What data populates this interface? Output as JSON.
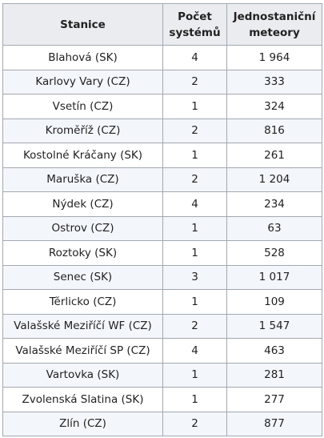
{
  "headers": {
    "station": "Stanice",
    "systems": "Počet systémů",
    "meteors": "Jednostaniční meteory"
  },
  "rows": [
    {
      "station": "Blahová (SK)",
      "systems": "4",
      "meteors": "1 964"
    },
    {
      "station": "Karlovy Vary (CZ)",
      "systems": "2",
      "meteors": "333"
    },
    {
      "station": "Vsetín (CZ)",
      "systems": "1",
      "meteors": "324"
    },
    {
      "station": "Kroměříž (CZ)",
      "systems": "2",
      "meteors": "816"
    },
    {
      "station": "Kostolné Kráčany (SK)",
      "systems": "1",
      "meteors": "261"
    },
    {
      "station": "Maruška (CZ)",
      "systems": "2",
      "meteors": "1 204"
    },
    {
      "station": "Nýdek (CZ)",
      "systems": "4",
      "meteors": "234"
    },
    {
      "station": "Ostrov (CZ)",
      "systems": "1",
      "meteors": "63"
    },
    {
      "station": "Roztoky (SK)",
      "systems": "1",
      "meteors": "528"
    },
    {
      "station": "Senec (SK)",
      "systems": "3",
      "meteors": "1 017"
    },
    {
      "station": "Těrlicko (CZ)",
      "systems": "1",
      "meteors": "109"
    },
    {
      "station": "Valašské Meziříčí WF (CZ)",
      "systems": "2",
      "meteors": "1 547"
    },
    {
      "station": "Valašské Meziříčí SP (CZ)",
      "systems": "4",
      "meteors": "463"
    },
    {
      "station": "Vartovka (SK)",
      "systems": "1",
      "meteors": "281"
    },
    {
      "station": "Zvolenská Slatina (SK)",
      "systems": "1",
      "meteors": "277"
    },
    {
      "station": "Zlín (CZ)",
      "systems": "2",
      "meteors": "877"
    }
  ]
}
